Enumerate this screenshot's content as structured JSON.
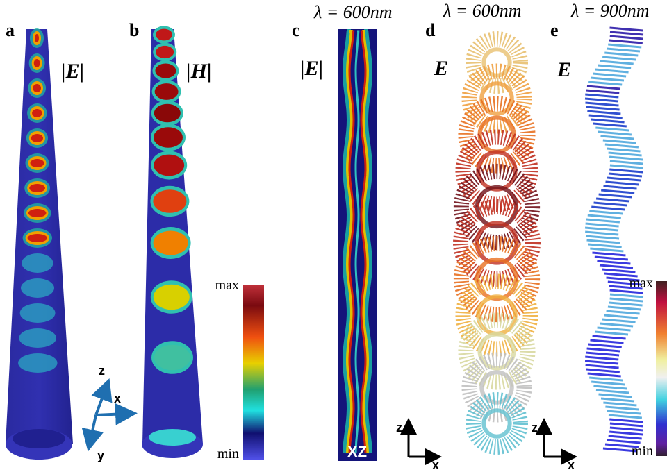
{
  "panels": [
    {
      "label": "a",
      "field": "|E|"
    },
    {
      "label": "b",
      "field": "|H|"
    },
    {
      "label": "c",
      "wavelength": "λ = 600nm",
      "field": "|E|",
      "plane": "XZ"
    },
    {
      "label": "d",
      "wavelength": "λ = 600nm",
      "field": "E"
    },
    {
      "label": "e",
      "wavelength": "λ = 900nm",
      "field": "E"
    }
  ],
  "axes_3d": {
    "z": "z",
    "x": "x",
    "y": "y"
  },
  "colorbars": [
    {
      "max": "max",
      "min": "min"
    },
    {
      "max": "max",
      "min": "min"
    }
  ],
  "axes_2d": [
    {
      "z": "z",
      "x": "x"
    },
    {
      "z": "z",
      "x": "x"
    }
  ]
}
